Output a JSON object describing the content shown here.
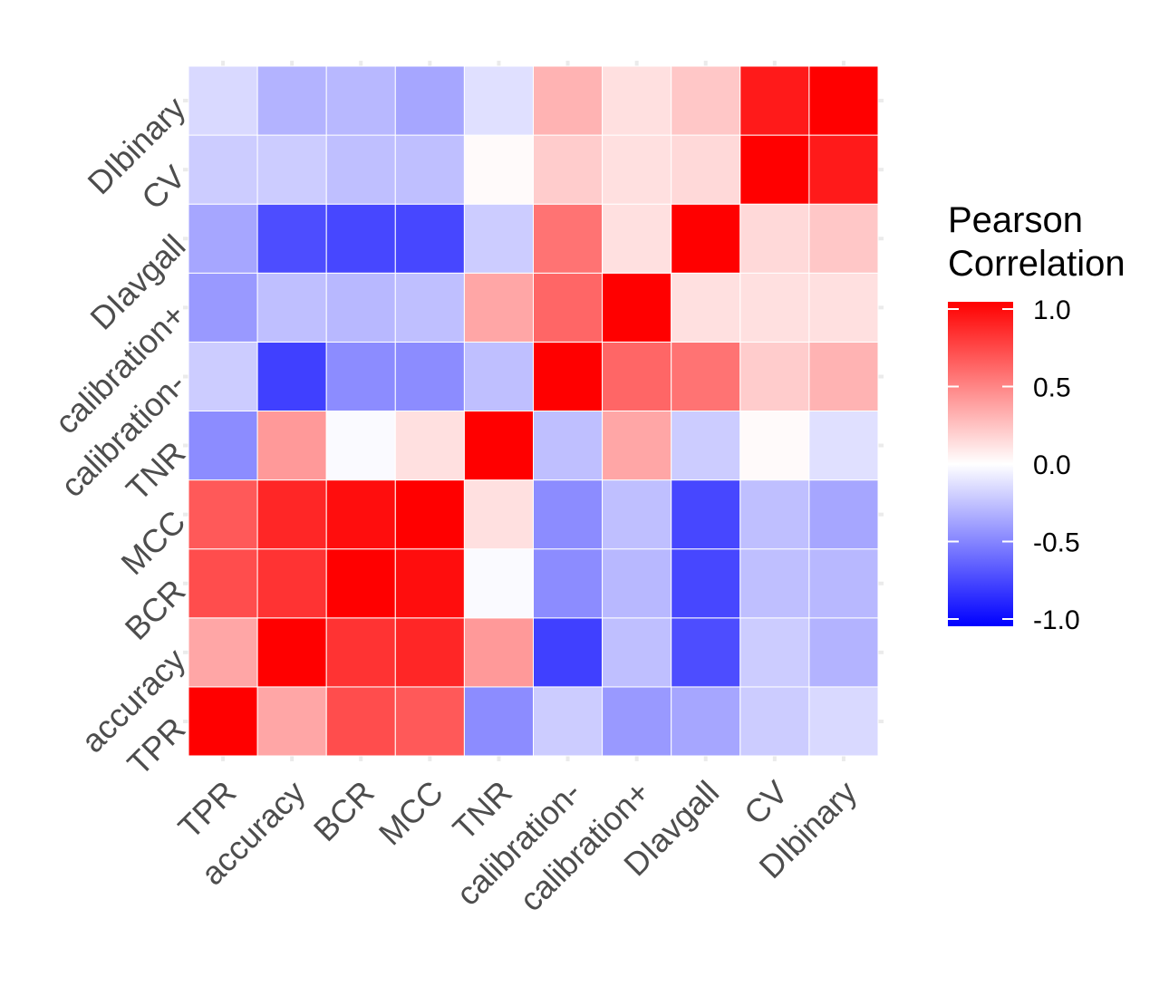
{
  "chart_data": {
    "type": "heatmap",
    "title": "",
    "xlabel": "",
    "ylabel": "",
    "categories": [
      "TPR",
      "accuracy",
      "BCR",
      "MCC",
      "TNR",
      "calibration-",
      "calibration+",
      "DIavgall",
      "CV",
      "DIbinary"
    ],
    "matrix": [
      [
        1.0,
        0.35,
        0.7,
        0.65,
        -0.45,
        -0.2,
        -0.4,
        -0.35,
        -0.2,
        -0.15
      ],
      [
        0.35,
        1.0,
        0.8,
        0.85,
        0.4,
        -0.75,
        -0.25,
        -0.7,
        -0.2,
        -0.3
      ],
      [
        0.7,
        0.8,
        1.0,
        0.95,
        -0.02,
        -0.45,
        -0.28,
        -0.72,
        -0.25,
        -0.28
      ],
      [
        0.65,
        0.85,
        0.95,
        1.0,
        0.12,
        -0.45,
        -0.25,
        -0.72,
        -0.25,
        -0.35
      ],
      [
        -0.45,
        0.4,
        -0.02,
        0.12,
        1.0,
        -0.25,
        0.35,
        -0.2,
        0.02,
        -0.12
      ],
      [
        -0.2,
        -0.75,
        -0.45,
        -0.45,
        -0.25,
        1.0,
        0.6,
        0.55,
        0.2,
        0.3
      ],
      [
        -0.4,
        -0.25,
        -0.28,
        -0.25,
        0.35,
        0.6,
        1.0,
        0.12,
        0.12,
        0.12
      ],
      [
        -0.35,
        -0.7,
        -0.72,
        -0.72,
        -0.2,
        0.55,
        0.12,
        1.0,
        0.15,
        0.22
      ],
      [
        -0.2,
        -0.2,
        -0.25,
        -0.25,
        0.02,
        0.2,
        0.12,
        0.15,
        1.0,
        0.9
      ],
      [
        -0.15,
        -0.3,
        -0.28,
        -0.35,
        -0.12,
        0.3,
        0.12,
        0.22,
        0.9,
        1.0
      ]
    ],
    "color_scale": {
      "low": "#0000FF",
      "mid": "#FFFFFF",
      "high": "#FF0000",
      "limits": [
        -1.0,
        1.0
      ]
    },
    "legend": {
      "title_line1": "Pearson",
      "title_line2": "Correlation",
      "ticks": [
        "1.0",
        "0.5",
        "0.0",
        "-0.5",
        "-1.0"
      ],
      "tick_values": [
        1.0,
        0.5,
        0.0,
        -0.5,
        -1.0
      ],
      "position": "right"
    },
    "grid": true
  }
}
